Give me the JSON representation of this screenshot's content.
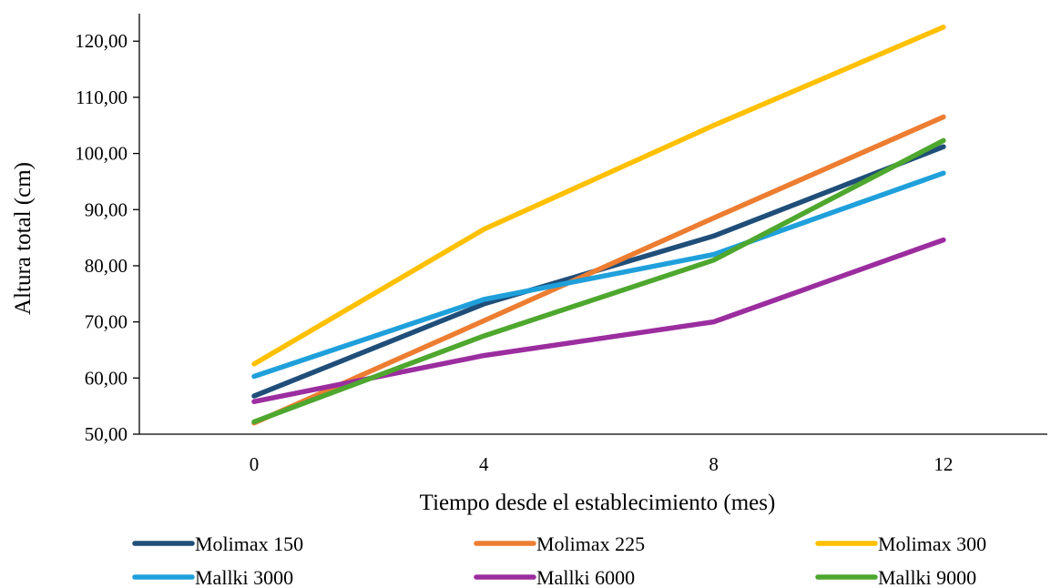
{
  "chart_data": {
    "type": "line",
    "title": "",
    "xlabel": "Tiempo desde el establecimiento (mes)",
    "ylabel": "Altura total (cm)",
    "categories": [
      "0",
      "4",
      "8",
      "12"
    ],
    "y_ticks": [
      "50,00",
      "60,00",
      "70,00",
      "80,00",
      "90,00",
      "100,00",
      "110,00",
      "120,00"
    ],
    "ylim": [
      50,
      125
    ],
    "grid": false,
    "legend_position": "bottom",
    "series": [
      {
        "name": "Molimax 150",
        "color": "#1f4e79",
        "values": [
          56.8,
          73.2,
          85.3,
          101.2
        ]
      },
      {
        "name": "Molimax 225",
        "color": "#ed7d31",
        "values": [
          52.0,
          70.2,
          88.5,
          106.5
        ]
      },
      {
        "name": "Molimax 300",
        "color": "#ffc000",
        "values": [
          62.5,
          86.5,
          105.0,
          122.5
        ]
      },
      {
        "name": "Mallki 3000",
        "color": "#1fa0db",
        "values": [
          60.3,
          74.0,
          82.0,
          96.5
        ]
      },
      {
        "name": "Mallki 6000",
        "color": "#9b2d9f",
        "values": [
          55.8,
          64.0,
          70.0,
          84.6
        ]
      },
      {
        "name": "Mallki 9000",
        "color": "#4ea72e",
        "values": [
          52.2,
          67.5,
          81.0,
          102.3
        ]
      }
    ]
  }
}
